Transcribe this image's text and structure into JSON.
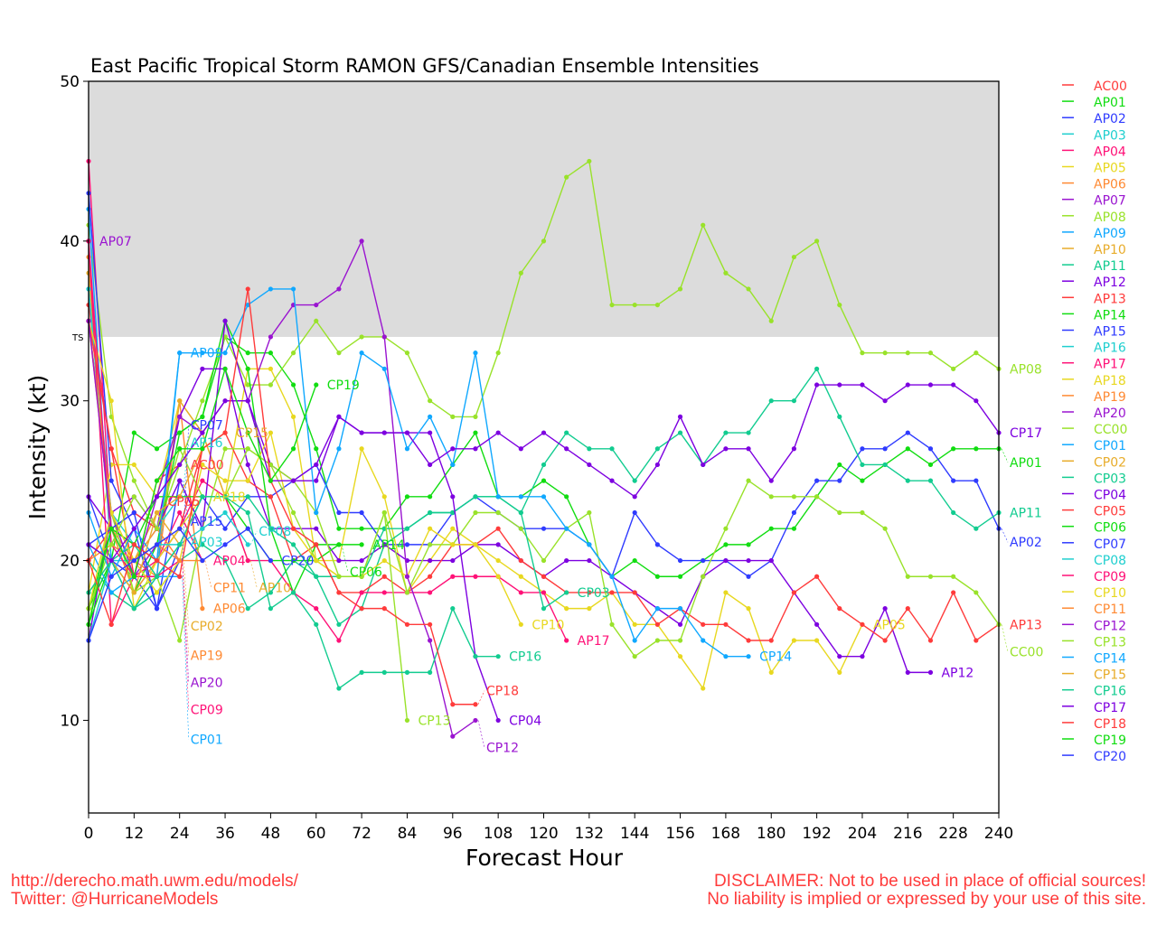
{
  "chart_data": {
    "type": "line",
    "title": "East Pacific Tropical Storm RAMON GFS/Canadian Ensemble Intensities",
    "xlabel": "Forecast Hour",
    "ylabel": "Intensity (kt)",
    "xlim": [
      0,
      240
    ],
    "ylim": [
      4.2,
      50
    ],
    "x_step_hours": 6,
    "x_ticks": [
      0,
      12,
      24,
      36,
      48,
      60,
      72,
      84,
      96,
      108,
      120,
      132,
      144,
      156,
      168,
      180,
      192,
      204,
      216,
      228,
      240
    ],
    "y_ticks": [
      10,
      20,
      30,
      40,
      50
    ],
    "threshold": {
      "label": "TS",
      "value": 34,
      "color": "#dcdcdc"
    },
    "legend_placement": "right",
    "series": [
      {
        "name": "AC00",
        "color": "#ff3b3b",
        "values": [
          36,
          27,
          19,
          25,
          26
        ]
      },
      {
        "name": "AP01",
        "color": "#11dd11",
        "values": [
          17,
          20,
          28,
          27,
          28,
          29,
          34,
          33,
          33,
          31,
          27,
          22,
          22,
          22,
          24,
          24,
          26,
          28,
          24,
          24,
          25,
          24,
          21,
          19,
          20,
          19,
          19,
          20,
          21,
          21,
          22,
          22,
          24,
          26,
          25,
          26,
          27,
          26,
          27,
          27,
          27
        ]
      },
      {
        "name": "AP02",
        "color": "#2f3bff",
        "values": [
          24,
          20,
          19,
          17,
          21,
          24,
          22,
          24,
          24,
          25,
          26,
          23,
          23,
          21,
          21,
          21,
          23,
          24,
          23,
          22,
          22,
          22,
          21,
          19,
          23,
          21,
          20,
          20,
          20,
          19,
          20,
          23,
          25,
          25,
          27,
          27,
          28,
          27,
          25,
          25,
          22
        ]
      },
      {
        "name": "AP03",
        "color": "#1fcfcf",
        "values": [
          37,
          23,
          21,
          20,
          22
        ]
      },
      {
        "name": "AP04",
        "color": "#ff1177",
        "values": [
          45,
          22,
          18,
          20,
          23,
          20
        ]
      },
      {
        "name": "AP05",
        "color": "#e8d820",
        "values": [
          18,
          26,
          26,
          24,
          30,
          28,
          24,
          32,
          32,
          29,
          20,
          20,
          27,
          24,
          18,
          20,
          22,
          21,
          20,
          19,
          18,
          17,
          17,
          18,
          16,
          16,
          14,
          12,
          18,
          17,
          13,
          15,
          15,
          13,
          16
        ]
      },
      {
        "name": "AP06",
        "color": "#ff8a33",
        "values": [
          39,
          21,
          20,
          19,
          30,
          17
        ]
      },
      {
        "name": "AP07",
        "color": "#9a14d0",
        "values": [
          40
        ]
      },
      {
        "name": "AP08",
        "color": "#99e22a",
        "values": [
          41,
          29,
          25,
          22,
          26,
          30,
          34,
          31,
          31,
          33,
          35,
          33,
          34,
          34,
          33,
          30,
          29,
          29,
          33,
          38,
          40,
          44,
          45,
          36,
          36,
          36,
          37,
          41,
          38,
          37,
          35,
          39,
          40,
          36,
          33,
          33,
          33,
          33,
          32,
          33,
          32
        ]
      },
      {
        "name": "AP09",
        "color": "#10a8ff",
        "values": [
          42,
          20,
          17,
          19,
          33
        ]
      },
      {
        "name": "AP10",
        "color": "#e8ac2a",
        "values": [
          38,
          22,
          18,
          20,
          30,
          28,
          24,
          20
        ]
      },
      {
        "name": "AP11",
        "color": "#12cc90",
        "values": [
          20,
          18,
          17,
          18,
          20,
          21,
          20,
          17,
          18,
          20,
          19,
          16,
          17,
          21,
          22,
          23,
          23,
          24,
          24,
          23,
          26,
          28,
          27,
          27,
          25,
          27,
          28,
          26,
          28,
          28,
          30,
          30,
          32,
          29,
          26,
          26,
          25,
          25,
          23,
          22,
          23
        ]
      },
      {
        "name": "AP12",
        "color": "#7d00e0",
        "values": [
          15,
          23,
          24,
          22,
          29,
          32,
          32,
          26,
          22,
          22,
          22,
          20,
          20,
          21,
          20,
          20,
          20,
          21,
          21,
          20,
          19,
          20,
          20,
          19,
          18,
          17,
          16,
          19,
          20,
          20,
          20,
          18,
          16,
          14,
          14,
          17,
          13,
          13
        ]
      },
      {
        "name": "AP13",
        "color": "#ff3b3b",
        "values": [
          20,
          22,
          21,
          20,
          22,
          27,
          28,
          25,
          24,
          20,
          21,
          18,
          18,
          19,
          18,
          19,
          21,
          21,
          22,
          20,
          19,
          18,
          18,
          18,
          18,
          16,
          17,
          16,
          16,
          15,
          15,
          18,
          19,
          17,
          16,
          15,
          17,
          15,
          18,
          15,
          16
        ]
      },
      {
        "name": "AP14",
        "color": "#11dd11",
        "values": [
          16,
          20,
          18,
          21,
          28,
          29,
          35,
          32,
          22,
          18,
          21,
          21,
          21
        ]
      },
      {
        "name": "AP15",
        "color": "#2f3bff",
        "values": [
          43,
          25,
          22,
          17,
          25
        ]
      },
      {
        "name": "AP16",
        "color": "#1fcfcf",
        "values": [
          37,
          21,
          20,
          22,
          24
        ]
      },
      {
        "name": "AP17",
        "color": "#ff1177",
        "values": [
          40,
          16,
          19,
          20,
          22,
          25,
          24,
          20,
          20,
          18,
          17,
          15,
          18,
          18,
          18,
          18,
          19,
          19,
          19,
          18,
          18,
          15
        ]
      },
      {
        "name": "AP18",
        "color": "#e8d820",
        "values": [
          35,
          30,
          17,
          20,
          22,
          24
        ]
      },
      {
        "name": "AP19",
        "color": "#ff8a33",
        "values": [
          35,
          22,
          20,
          22,
          20
        ]
      },
      {
        "name": "AP20",
        "color": "#9a14d0",
        "values": [
          35,
          23,
          19,
          21,
          20
        ]
      },
      {
        "name": "CC00",
        "color": "#99e22a",
        "values": [
          16,
          23,
          18,
          19,
          15,
          22,
          27,
          27,
          26,
          23,
          20,
          19,
          19,
          23,
          18,
          21,
          21,
          23,
          23,
          22,
          20,
          22,
          23,
          16,
          14,
          15,
          15,
          19,
          22,
          25,
          24,
          24,
          24,
          23,
          23,
          22,
          19,
          19,
          19,
          18,
          16
        ]
      },
      {
        "name": "CP01",
        "color": "#10a8ff",
        "values": [
          21,
          18,
          19,
          19,
          19
        ]
      },
      {
        "name": "CP02",
        "color": "#e8ac2a",
        "values": [
          35,
          23,
          20,
          23,
          21
        ]
      },
      {
        "name": "CP03",
        "color": "#12cc90",
        "values": [
          21,
          20,
          21,
          19,
          21,
          24,
          24,
          24,
          22,
          21,
          19,
          19,
          19,
          22,
          22,
          23,
          23,
          24,
          24,
          23,
          17,
          18
        ]
      },
      {
        "name": "CP04",
        "color": "#7d00e0",
        "values": [
          24,
          22,
          23,
          22,
          25,
          22,
          35,
          30,
          26,
          25,
          25,
          29,
          28,
          28,
          28,
          28,
          24,
          14,
          10
        ]
      },
      {
        "name": "CP05",
        "color": "#ff3b3b",
        "values": [
          35,
          27,
          23,
          22
        ]
      },
      {
        "name": "CP06",
        "color": "#11dd11",
        "values": [
          17,
          22,
          21,
          24,
          24,
          24,
          24,
          22,
          20,
          20,
          20,
          21
        ]
      },
      {
        "name": "CP07",
        "color": "#2f3bff",
        "values": [
          21,
          22,
          23,
          17,
          20
        ]
      },
      {
        "name": "CP08",
        "color": "#1fcfcf",
        "values": [
          15,
          20,
          20,
          21,
          21,
          22,
          23,
          21
        ]
      },
      {
        "name": "CP09",
        "color": "#ff1177",
        "values": [
          40,
          21,
          19,
          19,
          20
        ]
      },
      {
        "name": "CP10",
        "color": "#e8d820",
        "values": [
          17,
          23,
          20,
          18,
          20,
          26,
          25,
          25,
          28,
          22,
          20,
          19,
          19,
          20,
          19,
          22,
          21,
          21,
          19,
          16
        ]
      },
      {
        "name": "CP11",
        "color": "#ff8a33",
        "values": [
          20,
          21,
          20,
          21,
          20,
          20
        ]
      },
      {
        "name": "CP12",
        "color": "#9a14d0",
        "values": [
          35,
          22,
          19,
          24,
          29,
          28,
          30,
          30,
          34,
          36,
          36,
          37,
          40,
          34,
          19,
          15,
          9,
          10
        ]
      },
      {
        "name": "CP13",
        "color": "#99e22a",
        "values": [
          17,
          21,
          24,
          22,
          27,
          24,
          24,
          27,
          26,
          25,
          23,
          19,
          19,
          23,
          10
        ]
      },
      {
        "name": "CP14",
        "color": "#10a8ff",
        "values": [
          23,
          19,
          22,
          20,
          33,
          33,
          33,
          36,
          37,
          37,
          23,
          27,
          33,
          32,
          27,
          29,
          26,
          33,
          24,
          24,
          24,
          22,
          21,
          19,
          15,
          17,
          17,
          15,
          14,
          14
        ]
      },
      {
        "name": "CP15",
        "color": "#e8ac2a",
        "values": [
          18,
          20,
          18,
          23,
          24,
          27,
          28
        ]
      },
      {
        "name": "CP16",
        "color": "#12cc90",
        "values": [
          18,
          20,
          17,
          19,
          21,
          24,
          24,
          23,
          17,
          18,
          16,
          12,
          13,
          13,
          13,
          13,
          17,
          14,
          14
        ]
      },
      {
        "name": "CP17",
        "color": "#7d00e0",
        "values": [
          21,
          20,
          22,
          24,
          26,
          28,
          30,
          30,
          25,
          25,
          26,
          29,
          28,
          28,
          28,
          26,
          27,
          27,
          28,
          27,
          28,
          27,
          26,
          25,
          24,
          26,
          29,
          26,
          27,
          27,
          25,
          27,
          31,
          31,
          31,
          30,
          31,
          31,
          31,
          30,
          28
        ]
      },
      {
        "name": "CP18",
        "color": "#ff3b3b",
        "values": [
          20,
          16,
          21,
          20,
          19,
          27,
          28,
          37,
          25,
          22,
          21,
          18,
          17,
          17,
          16,
          16,
          11,
          11
        ]
      },
      {
        "name": "CP19",
        "color": "#11dd11",
        "values": [
          16,
          22,
          19,
          25,
          27,
          27,
          32,
          28,
          25,
          27,
          31
        ]
      },
      {
        "name": "CP20",
        "color": "#2f3bff",
        "values": [
          15,
          19,
          20,
          21,
          22,
          20,
          21,
          22,
          20
        ]
      }
    ]
  },
  "footer": {
    "url": "http://derecho.math.uwm.edu/models/",
    "twitter": "Twitter: @HurricaneModels",
    "disclaimer_1": "DISCLAIMER: Not to be used in place of official sources!",
    "disclaimer_2": "No liability is implied or expressed by your use of this site."
  }
}
